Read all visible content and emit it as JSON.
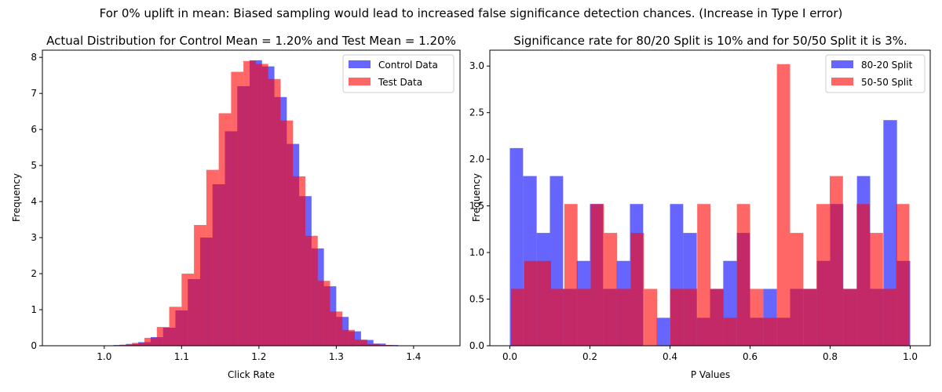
{
  "figure": {
    "suptitle": "For 0% uplift in mean: Biased sampling would lead to increased false significance detection chances. (Increase in Type I error)"
  },
  "chart_data": [
    {
      "type": "bar",
      "title": "Actual Distribution for Control Mean = 1.20% and Test Mean = 1.20%",
      "xlabel": "Click Rate",
      "ylabel": "Frequency",
      "xlim": [
        0.92,
        1.46
      ],
      "ylim": [
        0,
        8.2
      ],
      "xticks": [
        1.0,
        1.1,
        1.2,
        1.3,
        1.4
      ],
      "xtick_labels": [
        "1.0",
        "1.1",
        "1.2",
        "1.3",
        "1.4"
      ],
      "yticks": [
        0,
        1,
        2,
        3,
        4,
        5,
        6,
        7,
        8
      ],
      "ytick_labels": [
        "0",
        "1",
        "2",
        "3",
        "4",
        "5",
        "6",
        "7",
        "8"
      ],
      "legend": "upper right",
      "series": [
        {
          "name": "Control Data",
          "color": "#0000ff",
          "opacity": 0.6,
          "bin_edges": [
            1.012,
            1.028,
            1.044,
            1.06,
            1.076,
            1.092,
            1.108,
            1.124,
            1.14,
            1.156,
            1.172,
            1.188,
            1.204,
            1.22,
            1.236,
            1.252,
            1.268,
            1.284,
            1.3,
            1.316,
            1.332,
            1.348,
            1.364,
            1.38,
            1.396
          ],
          "values": [
            0.02,
            0.05,
            0.1,
            0.24,
            0.5,
            0.98,
            1.85,
            3.0,
            4.48,
            5.95,
            7.2,
            7.92,
            7.75,
            6.9,
            5.6,
            4.15,
            2.7,
            1.65,
            0.8,
            0.4,
            0.16,
            0.06,
            0.02,
            0.01
          ]
        },
        {
          "name": "Test Data",
          "color": "#ff0000",
          "opacity": 0.6,
          "bin_edges": [
            1.004,
            1.02,
            1.036,
            1.052,
            1.068,
            1.084,
            1.1,
            1.116,
            1.132,
            1.148,
            1.164,
            1.18,
            1.196,
            1.212,
            1.228,
            1.244,
            1.26,
            1.276,
            1.292,
            1.308,
            1.324,
            1.34,
            1.356,
            1.372,
            1.388
          ],
          "values": [
            0.01,
            0.03,
            0.08,
            0.22,
            0.52,
            1.08,
            2.0,
            3.35,
            4.88,
            6.45,
            7.6,
            7.9,
            7.82,
            7.4,
            6.25,
            4.7,
            3.05,
            1.8,
            0.95,
            0.44,
            0.17,
            0.05,
            0.02,
            0.01
          ]
        }
      ]
    },
    {
      "type": "bar",
      "title": "Significance rate for 80/20 Split is 10% and for 50/50 Split it is 3%.",
      "xlabel": "P Values",
      "ylabel": "Frequency",
      "xlim": [
        -0.05,
        1.05
      ],
      "ylim": [
        0,
        3.17
      ],
      "xticks": [
        0.0,
        0.2,
        0.4,
        0.6,
        0.8,
        1.0
      ],
      "xtick_labels": [
        "0.0",
        "0.2",
        "0.4",
        "0.6",
        "0.8",
        "1.0"
      ],
      "yticks": [
        0.0,
        0.5,
        1.0,
        1.5,
        2.0,
        2.5,
        3.0
      ],
      "ytick_labels": [
        "0.0",
        "0.5",
        "1.0",
        "1.5",
        "2.0",
        "2.5",
        "3.0"
      ],
      "legend": "upper right",
      "series": [
        {
          "name": "80-20 Split",
          "color": "#0000ff",
          "opacity": 0.6,
          "bin_edges": [
            0.0,
            0.033,
            0.067,
            0.1,
            0.133,
            0.167,
            0.2,
            0.233,
            0.267,
            0.3,
            0.333,
            0.367,
            0.4,
            0.433,
            0.467,
            0.5,
            0.533,
            0.567,
            0.6,
            0.633,
            0.667,
            0.7,
            0.733,
            0.767,
            0.8,
            0.833,
            0.867,
            0.9,
            0.933,
            0.967,
            1.0
          ],
          "values": [
            2.12,
            1.82,
            1.21,
            1.82,
            0.61,
            0.91,
            1.52,
            0.61,
            0.91,
            1.52,
            0.0,
            0.3,
            1.52,
            1.21,
            0.3,
            0.61,
            0.91,
            1.21,
            0.3,
            0.61,
            0.3,
            0.61,
            0.61,
            0.91,
            1.52,
            0.61,
            1.82,
            0.61,
            2.42,
            0.91
          ]
        },
        {
          "name": "50-50 Split",
          "color": "#ff0000",
          "opacity": 0.6,
          "bin_edges": [
            0.003,
            0.036,
            0.069,
            0.103,
            0.136,
            0.169,
            0.202,
            0.235,
            0.268,
            0.302,
            0.335,
            0.368,
            0.401,
            0.434,
            0.468,
            0.501,
            0.534,
            0.567,
            0.6,
            0.633,
            0.667,
            0.7,
            0.733,
            0.766,
            0.799,
            0.832,
            0.866,
            0.899,
            0.932,
            0.965,
            0.998
          ],
          "values": [
            0.61,
            0.91,
            0.91,
            0.61,
            1.52,
            0.61,
            1.52,
            1.21,
            0.61,
            1.21,
            0.61,
            0.0,
            0.61,
            0.61,
            1.52,
            0.61,
            0.3,
            1.52,
            0.61,
            0.3,
            3.02,
            1.21,
            0.61,
            1.52,
            1.82,
            0.61,
            1.52,
            1.21,
            0.61,
            1.52
          ]
        }
      ]
    }
  ]
}
